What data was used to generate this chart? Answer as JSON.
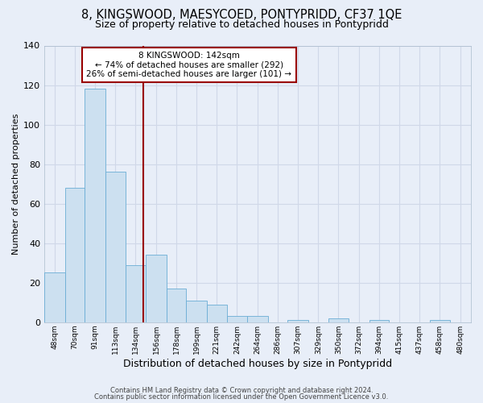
{
  "title1": "8, KINGSWOOD, MAESYCOED, PONTYPRIDD, CF37 1QE",
  "title2": "Size of property relative to detached houses in Pontypridd",
  "xlabel": "Distribution of detached houses by size in Pontypridd",
  "ylabel": "Number of detached properties",
  "bin_labels": [
    "48sqm",
    "70sqm",
    "91sqm",
    "113sqm",
    "134sqm",
    "156sqm",
    "178sqm",
    "199sqm",
    "221sqm",
    "242sqm",
    "264sqm",
    "286sqm",
    "307sqm",
    "329sqm",
    "350sqm",
    "372sqm",
    "394sqm",
    "415sqm",
    "437sqm",
    "458sqm",
    "480sqm"
  ],
  "bin_edges": [
    37,
    59,
    80,
    102,
    123,
    145,
    167,
    188,
    210,
    231,
    253,
    275,
    296,
    318,
    339,
    361,
    383,
    404,
    426,
    447,
    469,
    491
  ],
  "bar_values": [
    25,
    68,
    118,
    76,
    29,
    34,
    17,
    11,
    9,
    3,
    3,
    0,
    1,
    0,
    2,
    0,
    1,
    0,
    0,
    1,
    0
  ],
  "bar_facecolor": "#cce0f0",
  "bar_edgecolor": "#6aadd5",
  "ylim": [
    0,
    140
  ],
  "yticks": [
    0,
    20,
    40,
    60,
    80,
    100,
    120,
    140
  ],
  "vline_x": 142,
  "vline_color": "#990000",
  "annotation_title": "8 KINGSWOOD: 142sqm",
  "annotation_line1": "← 74% of detached houses are smaller (292)",
  "annotation_line2": "26% of semi-detached houses are larger (101) →",
  "annotation_box_edgecolor": "#990000",
  "footer1": "Contains HM Land Registry data © Crown copyright and database right 2024.",
  "footer2": "Contains public sector information licensed under the Open Government Licence v3.0.",
  "background_color": "#e8eef8",
  "grid_color": "#d0d8e8",
  "title1_fontsize": 10.5,
  "title2_fontsize": 9,
  "xlabel_fontsize": 9,
  "ylabel_fontsize": 8,
  "footer_fontsize": 6
}
